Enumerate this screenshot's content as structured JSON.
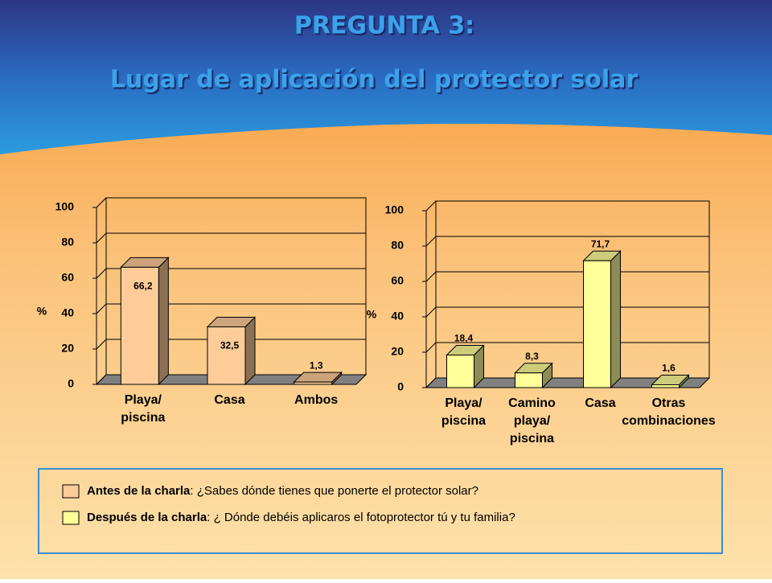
{
  "title": "PREGUNTA 3:",
  "subtitle": "Lugar de aplicación del protector solar",
  "chart_data": [
    {
      "type": "bar",
      "y_label": "%",
      "categories": [
        "Playa/ piscina",
        "Casa",
        "Ambos"
      ],
      "values": [
        66.2,
        32.5,
        1.3
      ],
      "value_labels": [
        "66,2",
        "32,5",
        "1,3"
      ],
      "color": "#ffcc99",
      "ylim": [
        0,
        100
      ],
      "yticks": [
        0,
        20,
        40,
        60,
        80,
        100
      ],
      "grid": true
    },
    {
      "type": "bar",
      "y_label": "%",
      "categories": [
        "Playa/ piscina",
        "Camino playa/ piscina",
        "Casa",
        "Otras combinaciones"
      ],
      "values": [
        18.4,
        8.3,
        71.7,
        1.6
      ],
      "value_labels": [
        "18,4",
        "8,3",
        "71,7",
        "1,6"
      ],
      "color": "#ffff99",
      "ylim": [
        0,
        100
      ],
      "yticks": [
        0,
        20,
        40,
        60,
        80,
        100
      ],
      "grid": true
    }
  ],
  "legend": [
    {
      "label": "Antes de la charla",
      "text": ": ¿Sabes dónde tienes que ponerte el protector solar?",
      "color": "#ffcc99"
    },
    {
      "label": "Después de la charla",
      "text": ": ¿ Dónde debéis aplicaros el fotoprotector tú y tu familia?",
      "color": "#ffff99"
    }
  ]
}
